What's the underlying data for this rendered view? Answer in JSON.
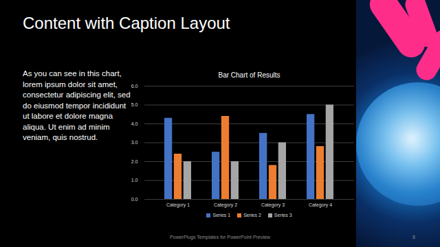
{
  "slide": {
    "title": "Content with Caption Layout",
    "caption": "As you can see in this chart, lorem ipsum dolor sit amet, consectetur adipiscing elit, sed do eiusmod tempor incididunt ut labore et dolore magna aliqua. Ut enim ad minim veniam, quis nostrud.",
    "footer": "PowerPlugs Templates for PowerPoint Preview",
    "page_number": "8"
  },
  "chart_data": {
    "type": "bar",
    "title": "Bar Chart of Results",
    "categories": [
      "Category 1",
      "Category 2",
      "Category 3",
      "Category 4"
    ],
    "series": [
      {
        "name": "Series 1",
        "color": "#4472c4",
        "values": [
          4.3,
          2.5,
          3.5,
          4.5
        ]
      },
      {
        "name": "Series 2",
        "color": "#ed7d31",
        "values": [
          2.4,
          4.4,
          1.8,
          2.8
        ]
      },
      {
        "name": "Series 3",
        "color": "#a5a5a5",
        "values": [
          2,
          2,
          3,
          5
        ]
      }
    ],
    "ylim": [
      0,
      6
    ],
    "yticks": [
      0,
      1,
      2,
      3,
      4,
      5,
      6
    ],
    "grid": true,
    "legend": "bottom"
  }
}
